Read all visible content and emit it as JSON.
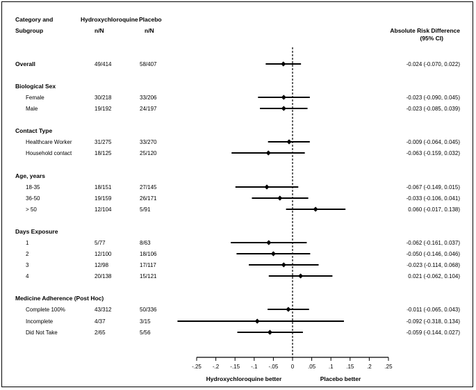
{
  "headers": {
    "category_line1": "Category and",
    "category_line2": "Subgroup",
    "treatment": "Hydroxychloroquine",
    "treatment_sub": "n/N",
    "placebo": "Placebo",
    "placebo_sub": "n/N",
    "effect_line1": "Absolute Risk Difference",
    "effect_line2": "(95% CI)"
  },
  "chart_data": {
    "type": "forest",
    "xlim": [
      -0.25,
      0.25
    ],
    "ticks": [
      -0.25,
      -0.2,
      -0.15,
      -0.1,
      -0.05,
      0,
      0.05,
      0.1,
      0.15,
      0.2,
      0.25
    ],
    "tick_labels": [
      "-.25",
      "-.2",
      "-.15",
      "-.1",
      "-.05",
      "0",
      ".05",
      ".1",
      ".15",
      ".2",
      ".25"
    ],
    "reference_line": 0,
    "left_label": "Hydroxychloroquine better",
    "right_label": "Placebo better",
    "rows": [
      {
        "kind": "group",
        "label": "Overall",
        "hcq": "49/414",
        "placebo": "58/407",
        "est": -0.024,
        "lo": -0.07,
        "hi": 0.022,
        "ci_text": "-0.024 (-0.070, 0.022)"
      },
      {
        "kind": "group",
        "label": "Biological Sex"
      },
      {
        "kind": "sub",
        "label": "Female",
        "hcq": "30/218",
        "placebo": "33/206",
        "est": -0.023,
        "lo": -0.09,
        "hi": 0.045,
        "ci_text": "-0.023 (-0.090, 0.045)"
      },
      {
        "kind": "sub",
        "label": "Male",
        "hcq": "19/192",
        "placebo": "24/197",
        "est": -0.023,
        "lo": -0.085,
        "hi": 0.039,
        "ci_text": "-0.023 (-0.085, 0.039)"
      },
      {
        "kind": "group",
        "label": "Contact Type"
      },
      {
        "kind": "sub",
        "label": "Healthcare Worker",
        "hcq": "31/275",
        "placebo": "33/270",
        "est": -0.009,
        "lo": -0.064,
        "hi": 0.045,
        "ci_text": "-0.009 (-0.064, 0.045)"
      },
      {
        "kind": "sub",
        "label": "Household contact",
        "hcq": "18/125",
        "placebo": "25/120",
        "est": -0.063,
        "lo": -0.159,
        "hi": 0.032,
        "ci_text": "-0.063 (-0.159, 0.032)"
      },
      {
        "kind": "group",
        "label": "Age, years"
      },
      {
        "kind": "sub",
        "label": "18-35",
        "hcq": "18/151",
        "placebo": "27/145",
        "est": -0.067,
        "lo": -0.149,
        "hi": 0.015,
        "ci_text": "-0.067 (-0.149, 0.015)"
      },
      {
        "kind": "sub",
        "label": "36-50",
        "hcq": "19/159",
        "placebo": "26/171",
        "est": -0.033,
        "lo": -0.106,
        "hi": 0.041,
        "ci_text": "-0.033 (-0.106, 0.041)"
      },
      {
        "kind": "sub",
        "label": "> 50",
        "hcq": "12/104",
        "placebo": "5/91",
        "est": 0.06,
        "lo": -0.017,
        "hi": 0.138,
        "ci_text": "0.060 (-0.017, 0.138)"
      },
      {
        "kind": "group",
        "label": "Days Exposure"
      },
      {
        "kind": "sub",
        "label": "1",
        "hcq": "5/77",
        "placebo": "8/63",
        "est": -0.062,
        "lo": -0.161,
        "hi": 0.037,
        "ci_text": "-0.062 (-0.161, 0.037)"
      },
      {
        "kind": "sub",
        "label": "2",
        "hcq": "12/100",
        "placebo": "18/106",
        "est": -0.05,
        "lo": -0.146,
        "hi": 0.046,
        "ci_text": "-0.050 (-0.146, 0.046)"
      },
      {
        "kind": "sub",
        "label": "3",
        "hcq": "12/98",
        "placebo": "17/117",
        "est": -0.023,
        "lo": -0.114,
        "hi": 0.068,
        "ci_text": "-0.023 (-0.114, 0.068)"
      },
      {
        "kind": "sub",
        "label": "4",
        "hcq": "20/138",
        "placebo": "15/121",
        "est": 0.021,
        "lo": -0.062,
        "hi": 0.104,
        "ci_text": "0.021 (-0.062, 0.104)"
      },
      {
        "kind": "group",
        "label": "Medicine Adherence (Post Hoc)"
      },
      {
        "kind": "sub",
        "label": "Complete 100%",
        "hcq": "43/312",
        "placebo": "50/336",
        "est": -0.011,
        "lo": -0.065,
        "hi": 0.043,
        "ci_text": "-0.011 (-0.065, 0.043)"
      },
      {
        "kind": "sub",
        "label": "Incomplete",
        "hcq": "4/37",
        "placebo": "3/15",
        "est": -0.092,
        "lo": -0.318,
        "hi": 0.134,
        "ci_text": "-0.092 (-0.318, 0.134)"
      },
      {
        "kind": "sub",
        "label": "Did Not Take",
        "hcq": "2/65",
        "placebo": "5/56",
        "est": -0.059,
        "lo": -0.144,
        "hi": 0.027,
        "ci_text": "-0.059 (-0.144, 0.027)"
      }
    ]
  }
}
